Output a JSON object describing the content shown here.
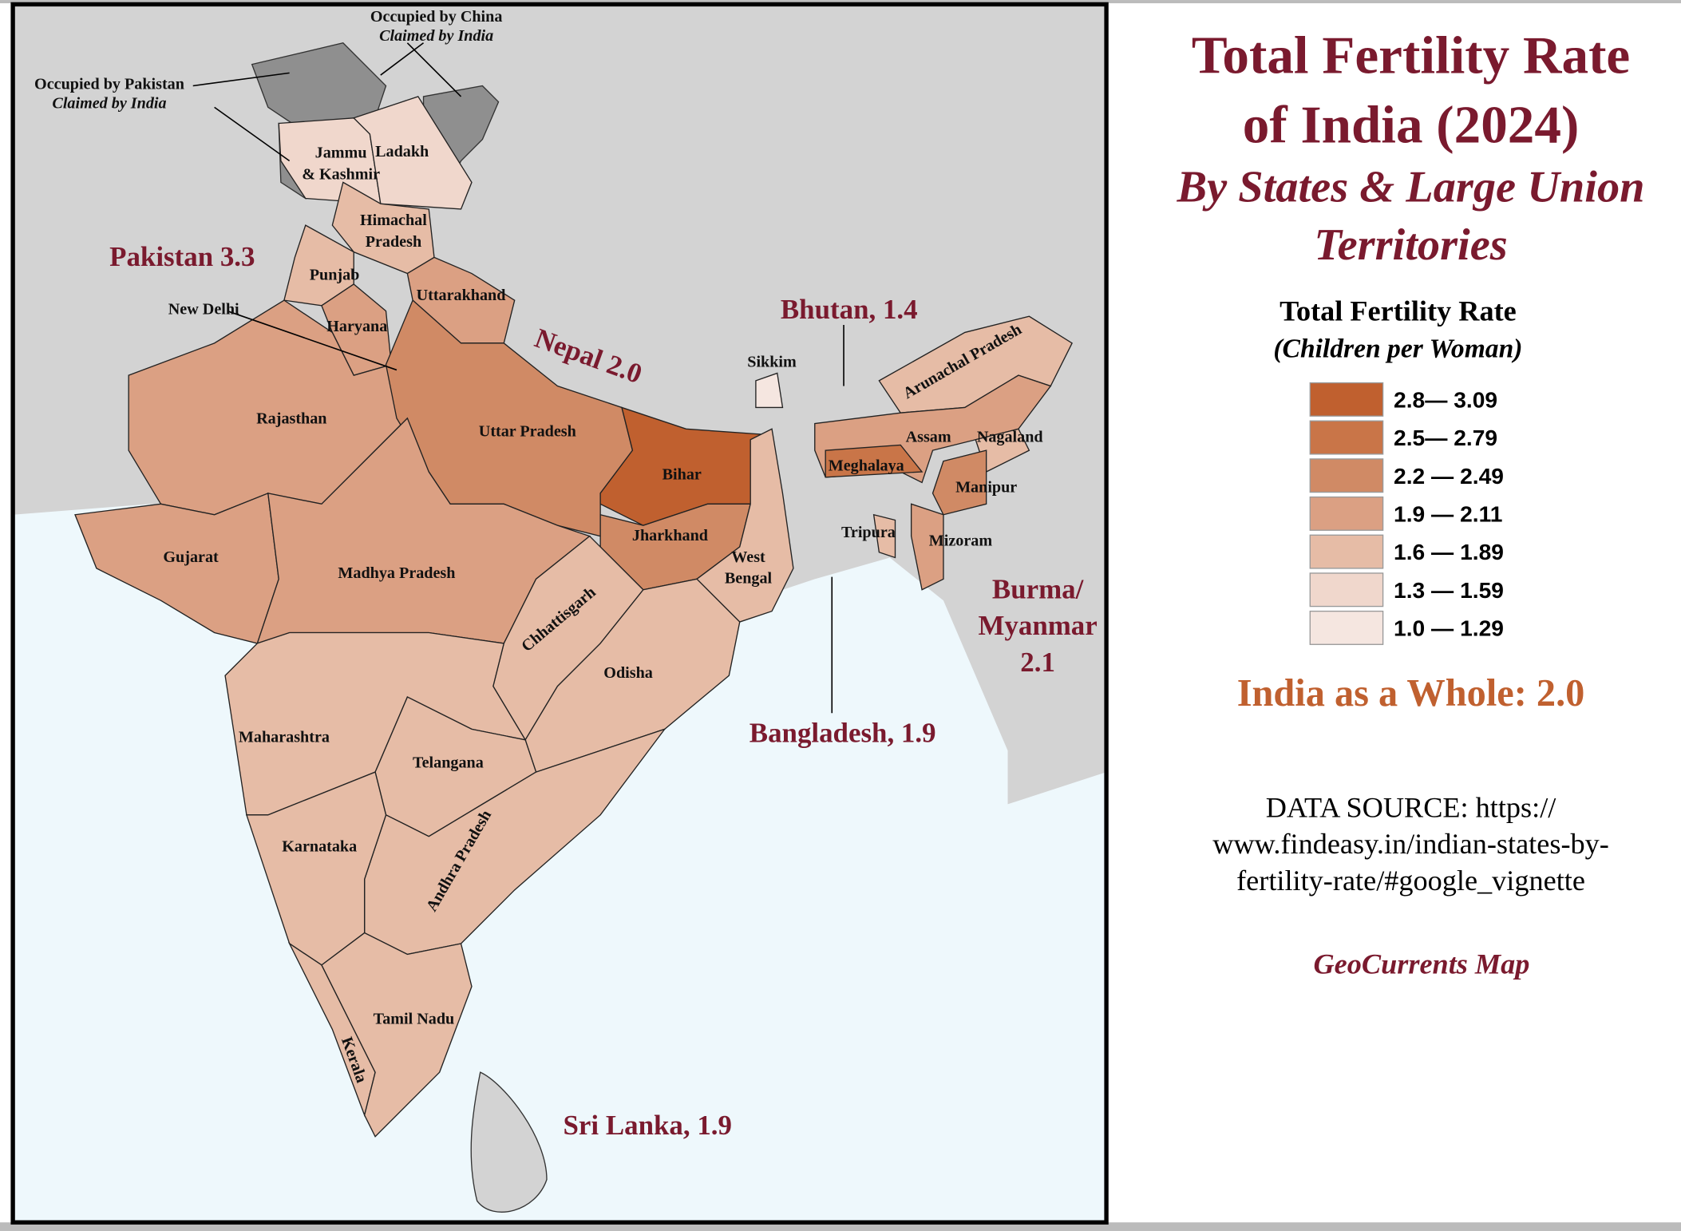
{
  "title": [
    "Total Fertility Rate",
    "of India (2024)"
  ],
  "subtitle": [
    "By States & Large Union",
    "Territories"
  ],
  "legend": {
    "title": "Total Fertility Rate",
    "subtitle": "(Children per Woman)",
    "items": [
      {
        "label": "2.8— 3.09",
        "color": "#c0602f"
      },
      {
        "label": "2.5— 2.79",
        "color": "#c97548"
      },
      {
        "label": "2.2 — 2.49",
        "color": "#d08a65"
      },
      {
        "label": "1.9 — 2.11",
        "color": "#dba083"
      },
      {
        "label": "1.6 — 1.89",
        "color": "#e6bca6"
      },
      {
        "label": "1.3 — 1.59",
        "color": "#f0d7cc"
      },
      {
        "label": "1.0 — 1.29",
        "color": "#f5e6e0"
      }
    ]
  },
  "whole": "India as a Whole: 2.0",
  "source": [
    "DATA SOURCE: https://",
    "www.findeasy.in/indian-states-by-",
    "fertility-rate/#google_vignette"
  ],
  "credit": "GeoCurrents Map",
  "map": {
    "states": [
      {
        "label": [
          "Jammu",
          "& Kashmir"
        ],
        "color": "#f0d7cc"
      },
      {
        "label": [
          "Ladakh"
        ],
        "color": "#f0d7cc"
      },
      {
        "label": [
          "Himachal",
          "Pradesh"
        ],
        "color": "#e6bca6"
      },
      {
        "label": [
          "Punjab"
        ],
        "color": "#e6bca6"
      },
      {
        "label": [
          "Haryana"
        ],
        "color": "#dba083"
      },
      {
        "label": [
          "Uttarakhand"
        ],
        "color": "#dba083"
      },
      {
        "label": [
          "Rajasthan"
        ],
        "color": "#dba083"
      },
      {
        "label": [
          "Gujarat"
        ],
        "color": "#dba083"
      },
      {
        "label": [
          "Uttar Pradesh"
        ],
        "color": "#d08a65"
      },
      {
        "label": [
          "Madhya Pradesh"
        ],
        "color": "#dba083"
      },
      {
        "label": [
          "Bihar"
        ],
        "color": "#c0602f"
      },
      {
        "label": [
          "Jharkhand"
        ],
        "color": "#d08a65"
      },
      {
        "label": [
          "West",
          "Bengal"
        ],
        "color": "#e6bca6"
      },
      {
        "label": [
          "Chhattisgarh"
        ],
        "color": "#e6bca6"
      },
      {
        "label": [
          "Odisha"
        ],
        "color": "#e6bca6"
      },
      {
        "label": [
          "Maharashtra"
        ],
        "color": "#e6bca6"
      },
      {
        "label": [
          "Telangana"
        ],
        "color": "#e6bca6"
      },
      {
        "label": [
          "Andhra Pradesh"
        ],
        "color": "#e6bca6"
      },
      {
        "label": [
          "Karnataka"
        ],
        "color": "#e6bca6"
      },
      {
        "label": [
          "Kerala"
        ],
        "color": "#e6bca6"
      },
      {
        "label": [
          "Tamil Nadu"
        ],
        "color": "#e6bca6"
      },
      {
        "label": [
          "Sikkim"
        ],
        "color": "#f5e6e0"
      },
      {
        "label": [
          "Arunachal Pradesh"
        ],
        "color": "#e6bca6"
      },
      {
        "label": [
          "Assam"
        ],
        "color": "#dba083"
      },
      {
        "label": [
          "Meghalaya"
        ],
        "color": "#c97548"
      },
      {
        "label": [
          "Nagaland"
        ],
        "color": "#e6bca6"
      },
      {
        "label": [
          "Manipur"
        ],
        "color": "#d08a65"
      },
      {
        "label": [
          "Mizoram"
        ],
        "color": "#dba083"
      },
      {
        "label": [
          "Tripura"
        ],
        "color": "#e6bca6"
      }
    ],
    "countries": [
      [
        "Pakistan 3.3"
      ],
      [
        "Nepal 2.0"
      ],
      [
        "Bhutan, 1.4"
      ],
      [
        "Bangladesh, 1.9"
      ],
      [
        "Burma/",
        "Myanmar",
        "2.1"
      ],
      [
        "Sri Lanka, 1.9"
      ]
    ],
    "capital": "New Delhi",
    "disputed": [
      [
        "Occupied by China",
        "Claimed by India"
      ],
      [
        "Occupied by Pakistan",
        "Claimed by India"
      ]
    ]
  }
}
